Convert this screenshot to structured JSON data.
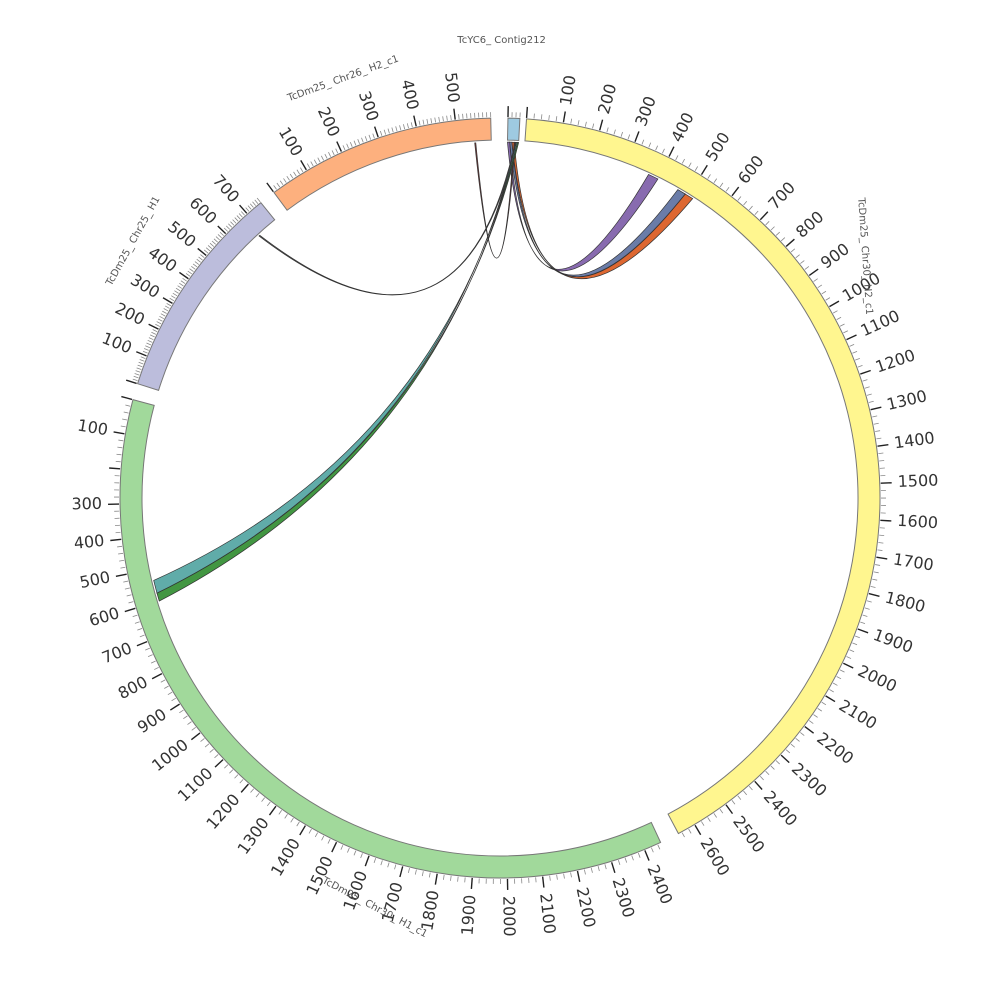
{
  "diagram": {
    "type": "circos",
    "segments": [
      {
        "id": "contig212",
        "name": "TcYC6_ Contig212",
        "color": "#9ECAE1",
        "length": 30,
        "tick_labels": []
      },
      {
        "id": "chr30_h2",
        "name": "TcDm25_ Chr30_ H2_c1",
        "color": "#FFF68F",
        "length": 2650,
        "tick_labels": [
          "100",
          "200",
          "300",
          "400",
          "500",
          "600",
          "700",
          "800",
          "900",
          "1000",
          "1100",
          "1200",
          "1300",
          "1400",
          "1500",
          "1600",
          "1700",
          "1800",
          "1900",
          "2000",
          "2100",
          "2200",
          "2300",
          "2400",
          "2500",
          "2600"
        ]
      },
      {
        "id": "chr30_h1",
        "name": "TcDm25_ Chr30_ H1_c1",
        "color": "#A1D99B",
        "length": 2450,
        "tick_labels": [
          "100",
          "300",
          "400",
          "500",
          "600",
          "700",
          "800",
          "900",
          "1000",
          "1100",
          "1200",
          "1300",
          "1400",
          "1500",
          "1600",
          "1700",
          "1800",
          "1900",
          "2000",
          "2100",
          "2200",
          "2300",
          "2400"
        ]
      },
      {
        "id": "chr25_h1",
        "name": "TcDm25_ Chr25_ H1",
        "color": "#BCBDDC",
        "length": 760,
        "tick_labels": [
          "100",
          "200",
          "300",
          "400",
          "500",
          "600",
          "700"
        ]
      },
      {
        "id": "chr26_h2",
        "name": "TcDm25_ Chr26_ H2_c1",
        "color": "#FDB07E",
        "length": 590,
        "tick_labels": [
          "100",
          "200",
          "300",
          "400",
          "500"
        ]
      }
    ],
    "links": [
      {
        "from": "contig212",
        "from_range": [
          0,
          6
        ],
        "to": "chr30_h2",
        "to_range": [
          370,
          400
        ],
        "color": "#7B5BA6"
      },
      {
        "from": "contig212",
        "from_range": [
          6,
          12
        ],
        "to": "chr30_h2",
        "to_range": [
          465,
          490
        ],
        "color": "#5A6E9E"
      },
      {
        "from": "contig212",
        "from_range": [
          12,
          18
        ],
        "to": "chr30_h2",
        "to_range": [
          490,
          515
        ],
        "color": "#D9561B"
      },
      {
        "from": "contig212",
        "from_range": [
          18,
          21
        ],
        "to": "chr26_h2",
        "to_range": [
          545,
          548
        ],
        "color": "#7A1F1F"
      },
      {
        "from": "contig212",
        "from_range": [
          21,
          24
        ],
        "to": "chr25_h1",
        "to_range": [
          678,
          682
        ],
        "color": "#444444"
      },
      {
        "from": "contig212",
        "from_range": [
          24,
          27
        ],
        "to": "chr30_h1",
        "to_range": [
          535,
          575
        ],
        "color": "#4FA3A0"
      },
      {
        "from": "contig212",
        "from_range": [
          27,
          30
        ],
        "to": "chr30_h1",
        "to_range": [
          575,
          600
        ],
        "color": "#2E8B2E"
      }
    ]
  }
}
